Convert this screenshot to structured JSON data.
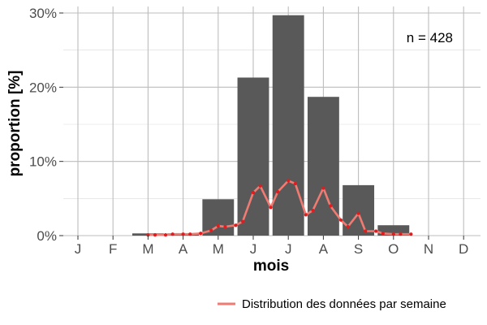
{
  "chart_data": {
    "type": "bar",
    "categories": [
      "J",
      "F",
      "M",
      "A",
      "M",
      "J",
      "J",
      "A",
      "S",
      "O",
      "N",
      "D"
    ],
    "values": [
      0,
      0,
      0.3,
      0.3,
      4.9,
      21.3,
      29.7,
      18.7,
      6.8,
      1.4,
      0,
      0
    ],
    "xlabel": "mois",
    "ylabel": "proportion [%]",
    "ylim": [
      0,
      30
    ],
    "yticks": [
      0,
      10,
      20,
      30
    ],
    "ytick_labels": [
      "0%",
      "10%",
      "20%",
      "30%"
    ],
    "grid": true,
    "annotation": "n = 428",
    "bar_color": "#595959",
    "series": [
      {
        "name": "Distribution des données par semaine",
        "type": "line",
        "color": "#f07b72",
        "marker_color": "#e41a1c",
        "x": [
          2.0,
          2.2,
          2.5,
          2.7,
          3.0,
          3.2,
          3.5,
          3.8,
          4.0,
          4.2,
          4.5,
          4.7,
          5.0,
          5.2,
          5.5,
          5.7,
          6.0,
          6.2,
          6.5,
          6.7,
          7.0,
          7.2,
          7.5,
          7.7,
          8.0,
          8.2,
          8.5,
          8.7,
          9.0,
          9.2,
          9.5
        ],
        "y": [
          0.1,
          0.1,
          0.1,
          0.2,
          0.2,
          0.2,
          0.3,
          0.7,
          1.3,
          1.2,
          1.4,
          1.9,
          5.8,
          6.7,
          3.8,
          5.9,
          7.4,
          7.0,
          2.8,
          3.4,
          6.4,
          4.0,
          2.1,
          1.2,
          3.0,
          0.6,
          0.6,
          0.3,
          0.2,
          0.2,
          0.2
        ]
      }
    ],
    "legend": {
      "position": "bottom-right",
      "label": "Distribution des données par semaine"
    }
  }
}
